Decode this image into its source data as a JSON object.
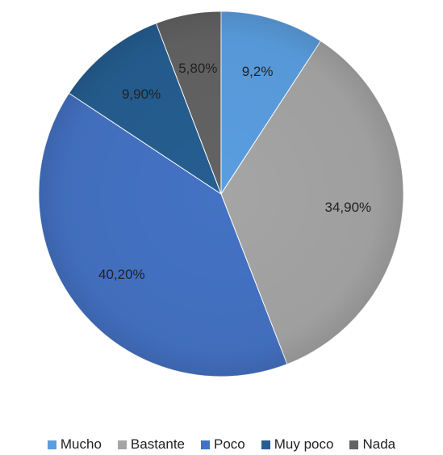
{
  "chart_data": {
    "type": "pie",
    "categories": [
      "Mucho",
      "Bastante",
      "Poco",
      "Muy poco",
      "Nada"
    ],
    "values": [
      9.2,
      34.9,
      40.2,
      9.9,
      5.8
    ],
    "labels": [
      "9,2%",
      "34,90%",
      "40,20%",
      "9,90%",
      "5,80%"
    ],
    "colors": [
      "#5a9ee0",
      "#a5a5a5",
      "#4472c4",
      "#255e91",
      "#636363"
    ],
    "legend_position": "bottom",
    "start_angle": "12 o'clock",
    "direction": "clockwise"
  }
}
